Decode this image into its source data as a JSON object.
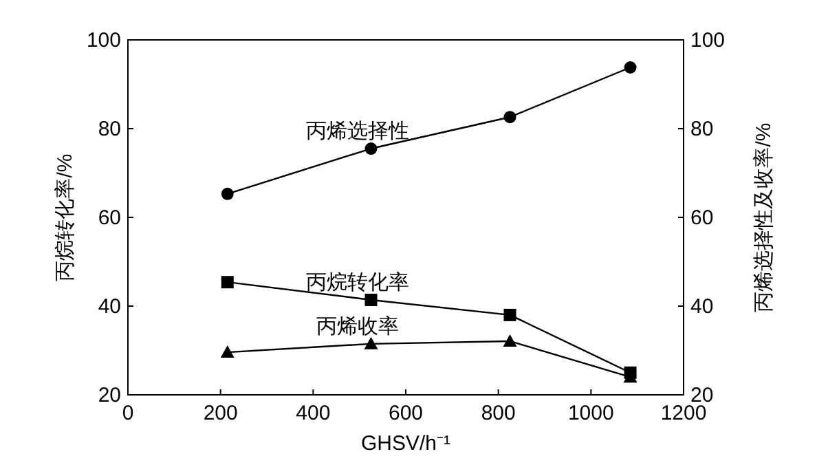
{
  "chart_data": {
    "type": "line",
    "xlabel": "GHSV/h⁻¹",
    "ylabel": "丙烷转化率/%",
    "y2label": "丙烯选择性及收率/%",
    "xlim": [
      0,
      1200
    ],
    "xticks": [
      0,
      200,
      400,
      600,
      800,
      1000,
      1200
    ],
    "ylim": [
      20,
      100
    ],
    "yticks": [
      20,
      40,
      60,
      80,
      100
    ],
    "y2lim": [
      20,
      100
    ],
    "y2ticks": [
      20,
      40,
      60,
      80,
      100
    ],
    "grid": false,
    "series": [
      {
        "name": "丙烯选择性",
        "color": "#000000",
        "marker": "circle",
        "x": [
          215,
          525,
          825,
          1085
        ],
        "values": [
          65.3,
          75.5,
          82.6,
          93.8
        ]
      },
      {
        "name": "丙烷转化率",
        "color": "#000000",
        "marker": "square",
        "x": [
          215,
          525,
          825,
          1085
        ],
        "values": [
          45.4,
          41.4,
          38.0,
          25.0
        ]
      },
      {
        "name": "丙烯收率",
        "color": "#000000",
        "marker": "triangle",
        "x": [
          215,
          525,
          825,
          1085
        ],
        "values": [
          29.6,
          31.5,
          32.1,
          24.0
        ]
      }
    ]
  }
}
